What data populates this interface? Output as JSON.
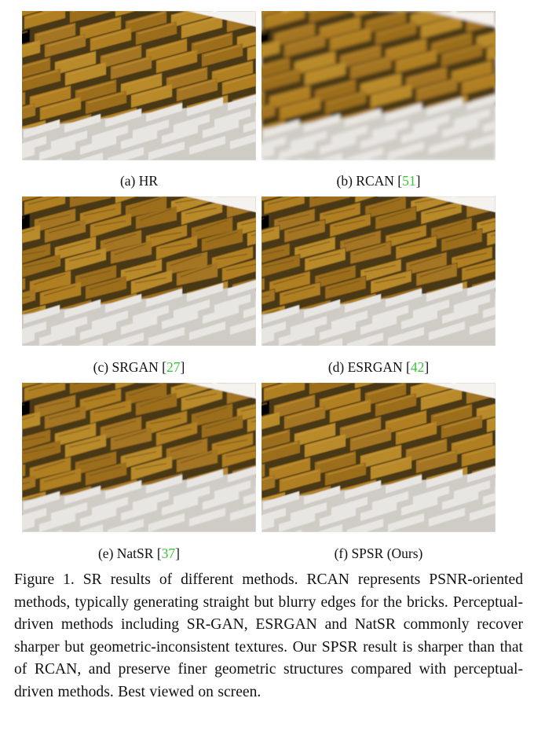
{
  "panels": [
    {
      "id": "a",
      "caption": "(a)  HR",
      "ref": "",
      "style": "sharp"
    },
    {
      "id": "b",
      "caption": "(b)  RCAN [",
      "ref": "51",
      "style": "blurry"
    },
    {
      "id": "c",
      "caption": "(c)  SRGAN [",
      "ref": "27",
      "style": "distorted"
    },
    {
      "id": "d",
      "caption": "(d)  ESRGAN [",
      "ref": "42",
      "style": "noisy"
    },
    {
      "id": "e",
      "caption": "(e)  NatSR [",
      "ref": "37",
      "style": "distorted-soft"
    },
    {
      "id": "f",
      "caption": "(f)  SPSR (Ours)",
      "ref": "",
      "style": "sharp"
    }
  ],
  "figure_caption": "Figure 1. SR results of different methods.  RCAN represents PSNR-oriented methods, typically generating straight but blurry edges for the bricks.  Perceptual-driven methods including SR-GAN, ESRGAN and NatSR commonly recover sharper but geometric-inconsistent textures. Our SPSR result is sharper than that of RCAN, and preserve finer geometric structures compared with perceptual-driven methods. Best viewed on screen.",
  "colors": {
    "brick": "#a8771f",
    "mortar": "#4a3714",
    "white_brick": "#e8e6e2",
    "reference": "#39c339"
  }
}
